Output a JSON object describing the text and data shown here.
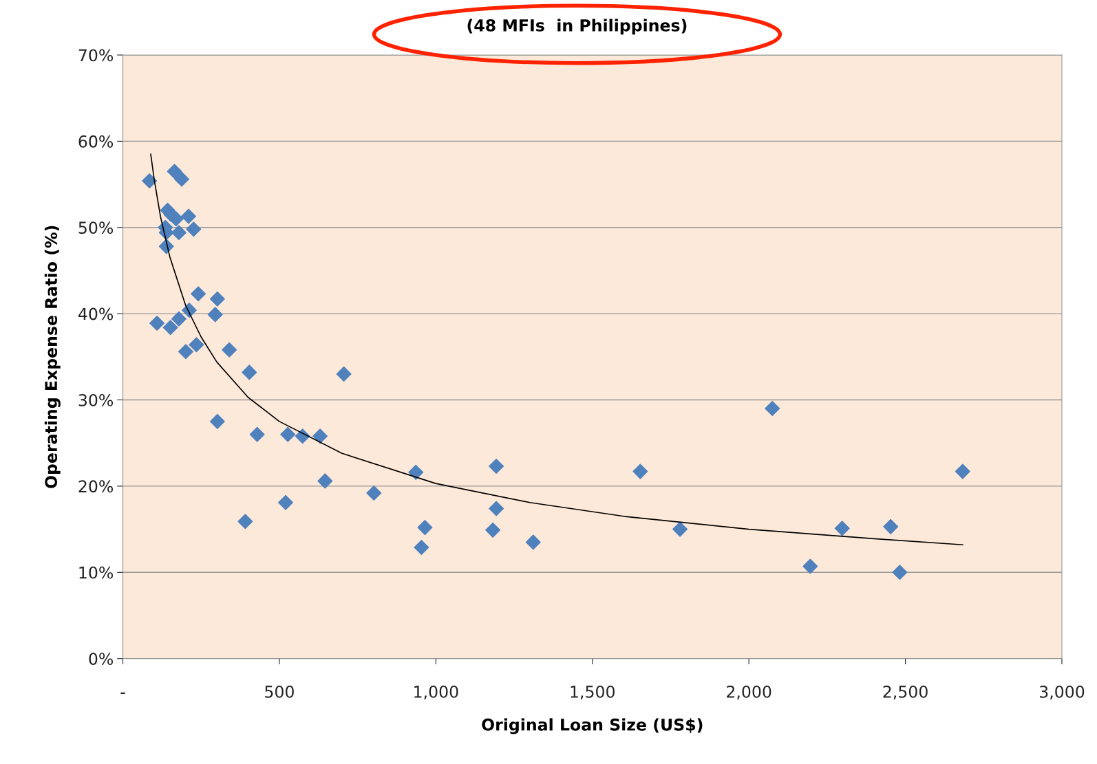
{
  "chart_data": {
    "type": "scatter",
    "subtitle": "(48 MFIs  in Philippines)",
    "xlabel": "Original Loan Size (US$)",
    "ylabel": "Operating Expense Ratio (%)",
    "xlim": [
      0,
      3000
    ],
    "xticks": [
      {
        "value": 0,
        "label": "-"
      },
      500,
      {
        "value": 1000,
        "label": "1,000"
      },
      {
        "value": 1500,
        "label": "1,500"
      },
      {
        "value": 2000,
        "label": "2,000"
      },
      {
        "value": 2500,
        "label": "2,500"
      },
      {
        "value": 3000,
        "label": "3,000"
      }
    ],
    "ylim": [
      0,
      70
    ],
    "yticks": [
      {
        "value": 0,
        "label": "0%"
      },
      {
        "value": 10,
        "label": "10%"
      },
      {
        "value": 20,
        "label": "20%"
      },
      {
        "value": 30,
        "label": "30%"
      },
      {
        "value": 40,
        "label": "40%"
      },
      {
        "value": 50,
        "label": "50%"
      },
      {
        "value": 60,
        "label": "60%"
      },
      {
        "value": 70,
        "label": "70%"
      }
    ],
    "grid": "y",
    "legend": false,
    "series": [
      {
        "marker": "diamond",
        "color": "#4f81bd",
        "x": [
          85,
          165,
          188,
          143,
          154,
          170,
          210,
          136,
          139,
          179,
          226,
          139,
          241,
          302,
          295,
          109,
          179,
          212,
          152,
          235,
          201,
          340,
          404,
          706,
          302,
          429,
          527,
          574,
          630,
          646,
          391,
          520,
          802,
          936,
          965,
          954,
          1193,
          1193,
          1182,
          1311,
          1653,
          1780,
          2075,
          2196,
          2298,
          2453,
          2482,
          2683
        ],
        "values": [
          55.4,
          56.5,
          55.6,
          52.0,
          51.5,
          51.0,
          51.3,
          50.0,
          49.4,
          49.4,
          49.8,
          47.8,
          42.3,
          41.7,
          39.9,
          38.9,
          39.4,
          40.4,
          38.4,
          36.4,
          35.6,
          35.8,
          33.2,
          33.0,
          27.5,
          26.0,
          26.0,
          25.8,
          25.8,
          20.6,
          15.9,
          18.1,
          19.2,
          21.6,
          15.2,
          12.9,
          22.3,
          17.4,
          14.9,
          13.5,
          21.7,
          15.0,
          29.0,
          10.7,
          15.1,
          15.3,
          10.0,
          21.7
        ]
      },
      {
        "type": "line",
        "marker": "none",
        "line_style": "solid",
        "color": "#000000",
        "x": [
          89,
          100,
          120,
          150,
          200,
          250,
          300,
          400,
          500,
          700,
          1000,
          1300,
          1600,
          2000,
          2400,
          2683
        ],
        "values": [
          58.5,
          55.6,
          51.3,
          46.6,
          41.0,
          37.3,
          34.4,
          30.3,
          27.5,
          23.8,
          20.3,
          18.1,
          16.5,
          15.0,
          13.9,
          13.2
        ]
      }
    ]
  }
}
